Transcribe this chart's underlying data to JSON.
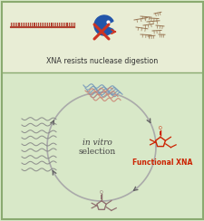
{
  "top_bg": "#e8edd5",
  "bottom_bg": "#d8e8c8",
  "border_color": "#8aaa70",
  "top_text": "XNA resists nuclease digestion",
  "center_text_italic": "in vitro",
  "center_text_normal": "selection",
  "functional_xna_text": "Functional XNA",
  "functional_xna_color": "#cc2200",
  "xna_strand_color": "#b04030",
  "nucleobase_color": "#907070",
  "arrow_color": "#666666",
  "circle_color": "#aaaaaa",
  "strand_gray": "#888888",
  "strand_blue": "#7799bb",
  "strand_salmon": "#cc8877",
  "pac_color": "#2255aa",
  "cross_color": "#cc3322",
  "broken_strands_color": "#997755"
}
